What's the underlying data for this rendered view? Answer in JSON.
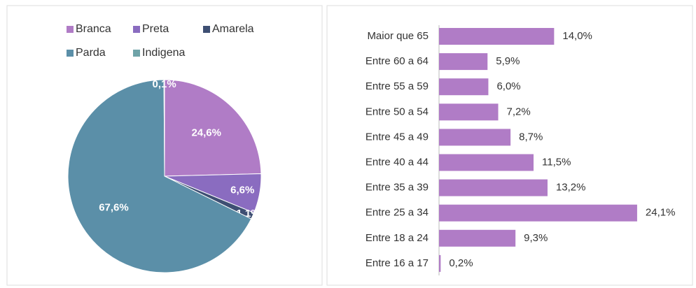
{
  "chart_data": [
    {
      "type": "pie",
      "categories": [
        "Branca",
        "Preta",
        "Amarela",
        "Parda",
        "Indigena"
      ],
      "values": [
        24.6,
        6.6,
        1.1,
        67.6,
        0.1
      ],
      "value_labels": [
        "24,6%",
        "6,6%",
        "1,1%",
        "67,6%",
        "0,1%"
      ],
      "colors": [
        "#b07cc6",
        "#8a6cc0",
        "#3e4f73",
        "#5b8fa8",
        "#6fa3a8"
      ],
      "legend": "top"
    },
    {
      "type": "hbar",
      "categories": [
        "Maior que  65",
        "Entre 60 a 64",
        "Entre 55 a 59",
        "Entre 50 a 54",
        "Entre 45 a 49",
        "Entre 40 a 44",
        "Entre 35 a 39",
        "Entre 25 a 34",
        "Entre 18 a 24",
        "Entre 16 a 17"
      ],
      "values": [
        14.0,
        5.9,
        6.0,
        7.2,
        8.7,
        11.5,
        13.2,
        24.1,
        9.3,
        0.2
      ],
      "value_labels": [
        "14,0%",
        "5,9%",
        "6,0%",
        "7,2%",
        "8,7%",
        "11,5%",
        "13,2%",
        "24,1%",
        "9,3%",
        "0,2%"
      ],
      "color": "#b07cc6"
    }
  ]
}
